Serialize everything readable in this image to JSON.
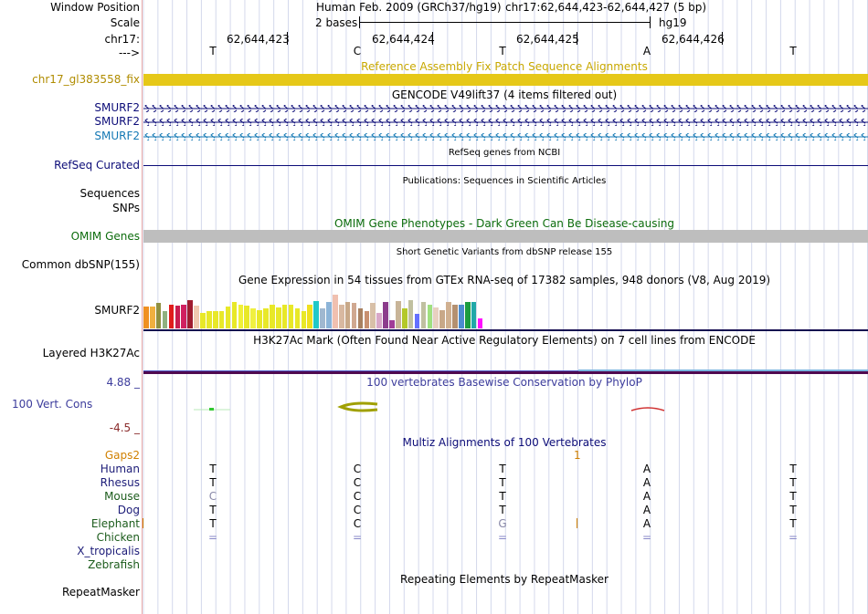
{
  "colors": {
    "fix_patch": "#e6c818",
    "gencode_blue": "#0c0c78",
    "gencode_lightblue": "#1478b4",
    "omim_gray": "#bebebe",
    "h3k27ac_line": "#140a50",
    "phylop_blue": "#3c3c9c",
    "phylop_red": "#8b2c2c",
    "phylop_green": "#32c832",
    "conservation_olive": "#a0a000",
    "gaps_orange": "#d08000",
    "cursor_red": "#e8a8a8",
    "grid_line": "#d4d8ec"
  },
  "header": {
    "window_position_label": "Window Position",
    "assembly": "Human Feb. 2009 (GRCh37/hg19)",
    "position": "chr17:62,644,423-62,644,427 (5 bp)",
    "scale_label": "Scale",
    "scale_value": "2 bases",
    "scale_db": "hg19",
    "chrom_label": "chr17:",
    "coord_1": "62,644,423",
    "coord_2": "62,644,424",
    "coord_3": "62,644,425",
    "coord_4": "62,644,426",
    "strand_label": "--->"
  },
  "sequence": {
    "bases": [
      "T",
      "C",
      "T",
      "A",
      "T"
    ]
  },
  "tracks": {
    "fix_patch_label": "chr17_gl383558_fix",
    "fix_patch_title": "Reference Assembly Fix Patch Sequence Alignments",
    "gencode_title": "GENCODE V49lift37 (4 items filtered out)",
    "gencode_genes": [
      "SMURF2",
      "SMURF2",
      "SMURF2"
    ],
    "refseq_title": "RefSeq genes from NCBI",
    "refseq_label": "RefSeq Curated",
    "publications_title": "Publications: Sequences in Scientific Articles",
    "sequences_label": "Sequences",
    "snps_label": "SNPs",
    "omim_title": "OMIM Gene Phenotypes - Dark Green Can Be Disease-causing",
    "omim_label": "OMIM Genes",
    "dbsnp_title": "Short Genetic Variants from dbSNP release 155",
    "dbsnp_label": "Common dbSNP(155)",
    "gtex_title": "Gene Expression in 54 tissues from GTEx RNA-seq of 17382 samples, 948 donors (V8, Aug 2019)",
    "gtex_label": "SMURF2",
    "h3k27ac_title": "H3K27Ac Mark (Often Found Near Active Regulatory Elements) on 7 cell lines from ENCODE",
    "h3k27ac_label": "Layered H3K27Ac",
    "phylop_title": "100 vertebrates Basewise Conservation by PhyloP",
    "phylop_label": "100 Vert. Cons",
    "phylop_max": "4.88 _",
    "phylop_min": "-4.5 _",
    "multiz_title": "Multiz Alignments of 100 Vertebrates",
    "gaps_label": "Gaps2",
    "gaps_count": "1",
    "repeat_title": "Repeating Elements by RepeatMasker",
    "repeat_label": "RepeatMasker"
  },
  "gtex_values": [
    0.78,
    0.78,
    0.9,
    0.6,
    0.85,
    0.8,
    0.85,
    1.0,
    0.8,
    0.55,
    0.6,
    0.62,
    0.6,
    0.78,
    0.92,
    0.85,
    0.8,
    0.7,
    0.65,
    0.72,
    0.85,
    0.75,
    0.85,
    0.82,
    0.72,
    0.62,
    0.85,
    0.95,
    0.72,
    0.92,
    1.2,
    0.85,
    0.92,
    0.9,
    0.7,
    0.6,
    0.9,
    0.55,
    0.92,
    0.3,
    0.95,
    0.72,
    0.98,
    0.5,
    0.92,
    0.85,
    0.75,
    0.65,
    0.92,
    0.85,
    0.85,
    0.92,
    0.92,
    0.35
  ],
  "gtex_colors": [
    "#f09020",
    "#f0b040",
    "#909040",
    "#90b080",
    "#e01c1c",
    "#c81c50",
    "#d02060",
    "#a01c30",
    "#f0c8b0",
    "#e8e828",
    "#e8e828",
    "#e8e828",
    "#e8e828",
    "#e8e828",
    "#e8e828",
    "#f0f038",
    "#e8e828",
    "#f0f040",
    "#e8e828",
    "#e8e828",
    "#e8e828",
    "#e8e828",
    "#e8e828",
    "#e8e828",
    "#e8e828",
    "#e8e828",
    "#f0e020",
    "#20c8c8",
    "#a0b8d0",
    "#8cb4d8",
    "#f0c0b0",
    "#d8b8a0",
    "#c8a888",
    "#d0a890",
    "#a88060",
    "#c89070",
    "#d8c0a8",
    "#d8a8c8",
    "#8c3c8c",
    "#a03c98",
    "#c8b498",
    "#b4c828",
    "#c0c0a0",
    "#6470ff",
    "#c0c0a0",
    "#a0e080",
    "#e8d0c0",
    "#c8a888",
    "#d0b090",
    "#b49070",
    "#4c8cd0",
    "#1c9c40",
    "#20a8a8",
    "#ff10ff"
  ],
  "species": [
    {
      "name": "Human",
      "color": "#1c1c78",
      "bases": [
        "T",
        "C",
        "T",
        "A",
        "T"
      ]
    },
    {
      "name": "Rhesus",
      "color": "#1c1c78",
      "bases": [
        "T",
        "C",
        "T",
        "A",
        "T"
      ]
    },
    {
      "name": "Mouse",
      "color": "#1c5c1c",
      "bases": [
        "C",
        "C",
        "T",
        "A",
        "T"
      ]
    },
    {
      "name": "Dog",
      "color": "#1c1c78",
      "bases": [
        "T",
        "C",
        "T",
        "A",
        "T"
      ]
    },
    {
      "name": "Elephant",
      "color": "#1c5c1c",
      "bases": [
        "T",
        "C",
        "G",
        "A",
        "T"
      ]
    },
    {
      "name": "Chicken",
      "color": "#1c5c1c",
      "bases": [
        "=",
        "=",
        "=",
        "=",
        "="
      ]
    },
    {
      "name": "X_tropicalis",
      "color": "#1c1c78",
      "bases": [
        "",
        "",
        "",
        "",
        ""
      ]
    },
    {
      "name": "Zebrafish",
      "color": "#1c5c1c",
      "bases": [
        "",
        "",
        "",
        "",
        ""
      ]
    }
  ]
}
